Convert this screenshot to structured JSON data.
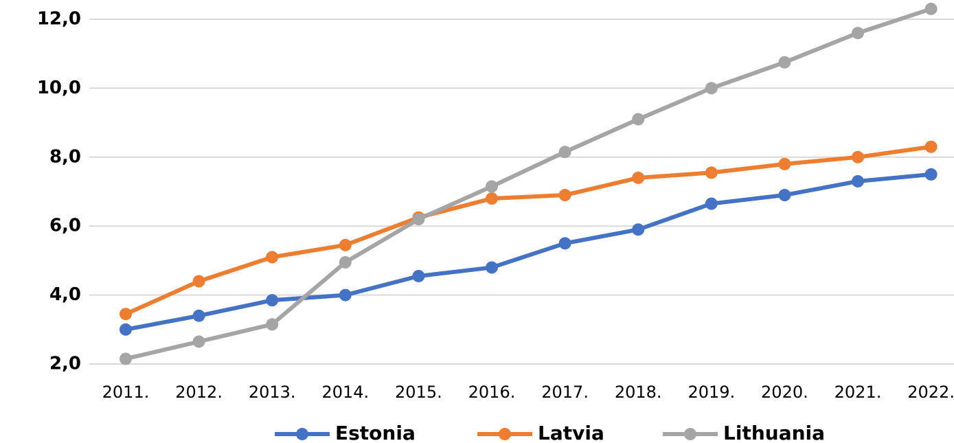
{
  "chart_data": {
    "type": "line",
    "categories": [
      "2011.",
      "2012.",
      "2013.",
      "2014.",
      "2015.",
      "2016.",
      "2017.",
      "2018.",
      "2019.",
      "2020.",
      "2021.",
      "2022."
    ],
    "series": [
      {
        "name": "Estonia",
        "color": "#4472c4",
        "values": [
          3.0,
          3.4,
          3.85,
          4.0,
          4.55,
          4.8,
          5.5,
          5.9,
          6.65,
          6.9,
          7.3,
          7.5
        ]
      },
      {
        "name": "Latvia",
        "color": "#ed7d31",
        "values": [
          3.45,
          4.4,
          5.1,
          5.45,
          6.25,
          6.8,
          6.9,
          7.4,
          7.55,
          7.8,
          8.0,
          8.3
        ]
      },
      {
        "name": "Lithuania",
        "color": "#a5a5a5",
        "values": [
          2.15,
          2.65,
          3.15,
          4.95,
          6.2,
          7.15,
          8.15,
          9.1,
          10.0,
          10.75,
          11.6,
          12.3
        ]
      }
    ],
    "ylim": [
      2,
      12.5
    ],
    "yticks": [
      {
        "value": 2,
        "label": "2,0"
      },
      {
        "value": 4,
        "label": "4,0"
      },
      {
        "value": 6,
        "label": "6,0"
      },
      {
        "value": 8,
        "label": "8,0"
      },
      {
        "value": 10,
        "label": "10,0"
      },
      {
        "value": 12,
        "label": "12,0"
      }
    ],
    "grid": true,
    "legend": "bottom"
  }
}
